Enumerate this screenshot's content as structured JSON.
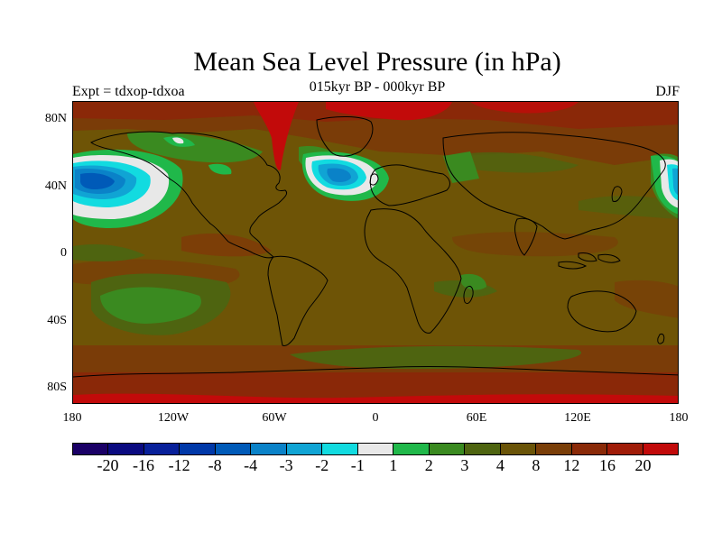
{
  "title": "Mean Sea Level Pressure (in hPa)",
  "subtitle": "015kyr BP - 000kyr BP",
  "experiment_label": "Expt = tdxop-tdxoa",
  "season_label": "DJF",
  "lat_labels": [
    "80N",
    "40N",
    "0",
    "40S",
    "80S"
  ],
  "lon_labels": [
    "180",
    "120W",
    "60W",
    "0",
    "60E",
    "120E",
    "180"
  ],
  "colorbar": {
    "colors": [
      "#1a0066",
      "#0a0a80",
      "#08209a",
      "#0038a8",
      "#005ab8",
      "#0a82c8",
      "#10a4d4",
      "#12dbe0",
      "#e8e8e8",
      "#20b84a",
      "#3a8a20",
      "#4e6410",
      "#6a5408",
      "#7a3e08",
      "#8a2a08",
      "#a01c08",
      "#c20a0a"
    ],
    "labels": [
      "-20",
      "-16",
      "-12",
      "-8",
      "-4",
      "-3",
      "-2",
      "-1",
      "1",
      "2",
      "3",
      "4",
      "8",
      "12",
      "16",
      "20"
    ]
  },
  "map_colors": {
    "background": "#6e5406",
    "red_high": "#c20a0a",
    "dark_red": "#8a2808",
    "rust": "#7a3c08",
    "olive": "#4e6410",
    "green": "#3a8a20",
    "bright_green": "#20b84a",
    "white": "#e8e8e8",
    "cyan": "#12dbe0",
    "light_blue": "#10a4d4",
    "blue": "#0a82c8",
    "dark_blue": "#005ab8",
    "coast": "#000000"
  }
}
